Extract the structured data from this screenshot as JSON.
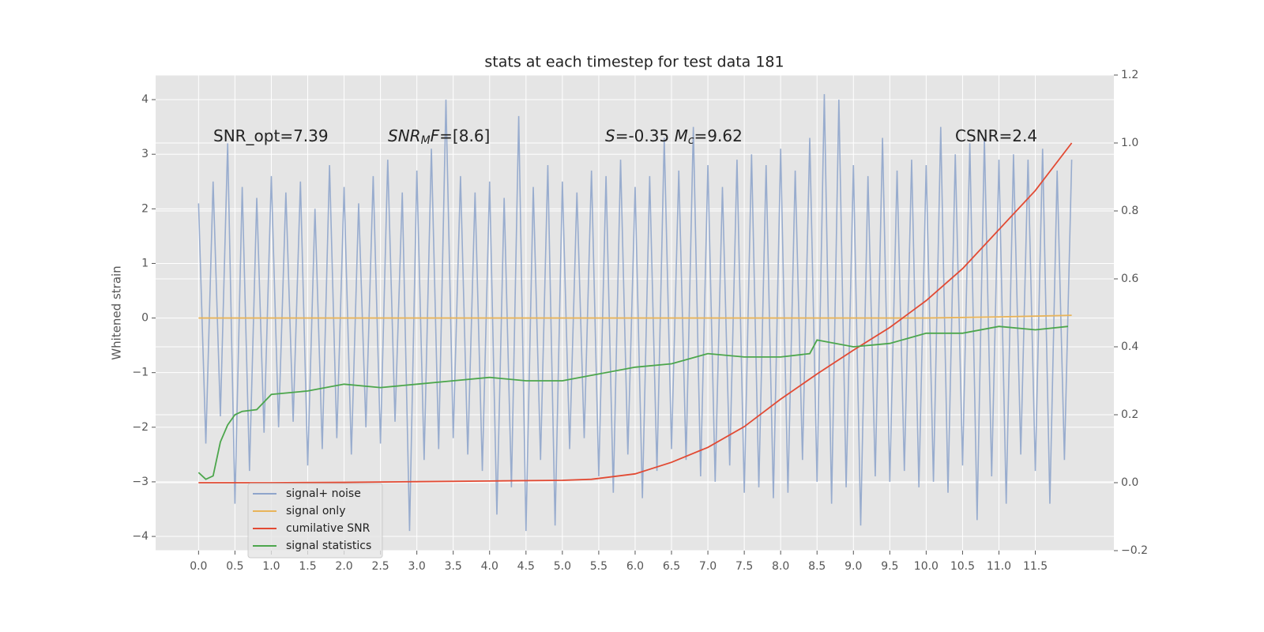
{
  "chart_data": {
    "type": "line",
    "title": "stats at each timestep for test data 181",
    "ylabel": "Whitened strain",
    "xlim": [
      -0.59,
      12.58
    ],
    "ylim": [
      -4.26,
      4.45
    ],
    "y2lim": [
      -0.2,
      1.2
    ],
    "grid": true,
    "legend": "lower left",
    "xticks": [
      {
        "value": 0,
        "label": "0.0"
      },
      0.5,
      {
        "value": 1,
        "label": "1.0"
      },
      1.5,
      {
        "value": 2,
        "label": "2.0"
      },
      2.5,
      {
        "value": 3,
        "label": "3.0"
      },
      3.5,
      {
        "value": 4,
        "label": "4.0"
      },
      4.5,
      {
        "value": 5,
        "label": "5.0"
      },
      5.5,
      {
        "value": 6,
        "label": "6.0"
      },
      6.5,
      {
        "value": 7,
        "label": "7.0"
      },
      7.5,
      {
        "value": 8,
        "label": "8.0"
      },
      8.5,
      {
        "value": 9,
        "label": "9.0"
      },
      9.5,
      {
        "value": 10,
        "label": "10.0"
      },
      10.5,
      {
        "value": 11,
        "label": "11.0"
      },
      11.5
    ],
    "yticks": [
      {
        "value": -4,
        "label": "−4"
      },
      {
        "value": -3,
        "label": "−3"
      },
      {
        "value": -2,
        "label": "−2"
      },
      {
        "value": -1,
        "label": "−1"
      },
      0,
      1,
      2,
      3,
      4
    ],
    "y2ticks": [
      {
        "value": -0.2,
        "label": "−0.2"
      },
      {
        "value": 0,
        "label": "0.0"
      },
      0.2,
      0.4,
      0.6,
      0.8,
      {
        "value": 1,
        "label": "1.0"
      },
      1.2
    ],
    "annotations": [
      [
        {
          "text": "SNR_opt=7.39",
          "style": "normal"
        }
      ],
      [
        {
          "text": "SNR",
          "style": "italic"
        },
        {
          "text": "M",
          "style": "italic-sub"
        },
        {
          "text": "F",
          "style": "italic"
        },
        {
          "text": "=[8.6]",
          "style": "normal"
        }
      ],
      [
        {
          "text": "S",
          "style": "italic"
        },
        {
          "text": "=-0.35  ",
          "style": "normal"
        },
        {
          "text": "M",
          "style": "italic"
        },
        {
          "text": "c",
          "style": "italic-sub"
        },
        {
          "text": "=9.62",
          "style": "normal"
        }
      ],
      [
        {
          "text": "CSNR=2.4",
          "style": "normal"
        }
      ]
    ],
    "series": [
      {
        "name": "signal+ noise",
        "color": "#8fa5cb",
        "axis": "y",
        "x": [
          0,
          0.1,
          0.2,
          0.3,
          0.4,
          0.5,
          0.6,
          0.7,
          0.8,
          0.9,
          1,
          1.1,
          1.2,
          1.3,
          1.4,
          1.5,
          1.6,
          1.7,
          1.8,
          1.9,
          2,
          2.1,
          2.2,
          2.3,
          2.4,
          2.5,
          2.6,
          2.7,
          2.8,
          2.9,
          3,
          3.1,
          3.2,
          3.3,
          3.4,
          3.5,
          3.6,
          3.7,
          3.8,
          3.9,
          4,
          4.1,
          4.2,
          4.3,
          4.4,
          4.5,
          4.6,
          4.7,
          4.8,
          4.9,
          5,
          5.1,
          5.2,
          5.3,
          5.4,
          5.5,
          5.6,
          5.7,
          5.8,
          5.9,
          6,
          6.1,
          6.2,
          6.3,
          6.4,
          6.5,
          6.6,
          6.7,
          6.8,
          6.9,
          7,
          7.1,
          7.2,
          7.3,
          7.4,
          7.5,
          7.6,
          7.7,
          7.8,
          7.9,
          8,
          8.1,
          8.2,
          8.3,
          8.4,
          8.5,
          8.6,
          8.7,
          8.8,
          8.9,
          9,
          9.1,
          9.2,
          9.3,
          9.4,
          9.5,
          9.6,
          9.7,
          9.8,
          9.9,
          10,
          10.1,
          10.2,
          10.3,
          10.4,
          10.5,
          10.6,
          10.7,
          10.8,
          10.9,
          11,
          11.1,
          11.2,
          11.3,
          11.4,
          11.5,
          11.6,
          11.7,
          11.8,
          11.9,
          12
        ],
        "values": [
          2.1,
          -2.3,
          2.5,
          -1.8,
          3.2,
          -3.4,
          2.4,
          -2.8,
          2.2,
          -2.1,
          2.6,
          -2.0,
          2.3,
          -1.9,
          2.5,
          -2.7,
          2.0,
          -2.4,
          2.8,
          -2.2,
          2.4,
          -2.5,
          2.1,
          -2.0,
          2.6,
          -2.3,
          2.9,
          -1.9,
          2.3,
          -3.9,
          2.7,
          -2.6,
          3.1,
          -2.4,
          4.0,
          -2.2,
          2.6,
          -2.5,
          2.3,
          -2.8,
          2.5,
          -3.6,
          2.2,
          -3.1,
          3.7,
          -3.9,
          2.4,
          -2.6,
          2.8,
          -3.8,
          2.5,
          -2.4,
          2.3,
          -2.2,
          2.7,
          -2.9,
          2.6,
          -3.2,
          2.9,
          -2.5,
          2.4,
          -3.3,
          2.6,
          -2.8,
          3.3,
          -2.4,
          2.7,
          -2.6,
          3.5,
          -2.9,
          2.8,
          -3.0,
          2.4,
          -2.7,
          2.9,
          -3.2,
          3.0,
          -3.1,
          2.8,
          -3.3,
          3.1,
          -3.2,
          2.7,
          -2.6,
          3.3,
          -3.0,
          4.1,
          -3.4,
          4.0,
          -3.1,
          2.8,
          -3.8,
          2.6,
          -2.9,
          3.3,
          -3.0,
          2.7,
          -2.8,
          2.9,
          -3.1,
          2.8,
          -3.0,
          3.5,
          -3.2,
          3.0,
          -2.7,
          3.2,
          -3.7,
          3.3,
          -2.9,
          2.9,
          -3.4,
          3.0,
          -2.5,
          2.9,
          -2.8,
          3.1,
          -3.4,
          2.7,
          -2.6,
          2.9
        ]
      },
      {
        "name": "signal only",
        "color": "#e8b45a",
        "axis": "y",
        "x": [
          0,
          1,
          2,
          3,
          4,
          5,
          6,
          7,
          8,
          9,
          10,
          11,
          12
        ],
        "values": [
          0,
          0,
          0,
          0,
          0,
          0,
          0,
          0,
          0,
          0,
          0,
          0.02,
          0.05
        ]
      },
      {
        "name": "cumilative SNR",
        "color": "#e24a33",
        "axis": "y2",
        "x": [
          0,
          1,
          2,
          3,
          4,
          5,
          5.4,
          6,
          6.5,
          7,
          7.5,
          8,
          8.5,
          9,
          9.5,
          10,
          10.5,
          11,
          11.5,
          12
        ],
        "values": [
          0,
          0,
          0.001,
          0.003,
          0.005,
          0.007,
          0.01,
          0.026,
          0.06,
          0.104,
          0.165,
          0.246,
          0.32,
          0.39,
          0.457,
          0.536,
          0.63,
          0.745,
          0.86,
          1.0
        ]
      },
      {
        "name": "signal statistics",
        "color": "#4ca64c",
        "axis": "y2",
        "x": [
          0,
          0.1,
          0.2,
          0.3,
          0.4,
          0.5,
          0.6,
          0.8,
          1,
          1.5,
          2,
          2.5,
          3,
          3.5,
          4,
          4.5,
          5,
          5.5,
          6,
          6.5,
          7,
          7.5,
          8,
          8.4,
          8.5,
          9,
          9.5,
          10,
          10.5,
          11,
          11.5,
          11.95
        ],
        "values": [
          0.03,
          0.01,
          0.02,
          0.12,
          0.17,
          0.2,
          0.21,
          0.215,
          0.26,
          0.27,
          0.29,
          0.28,
          0.29,
          0.3,
          0.31,
          0.3,
          0.3,
          0.32,
          0.34,
          0.35,
          0.38,
          0.37,
          0.37,
          0.38,
          0.42,
          0.4,
          0.41,
          0.44,
          0.44,
          0.46,
          0.45,
          0.46
        ]
      }
    ]
  }
}
